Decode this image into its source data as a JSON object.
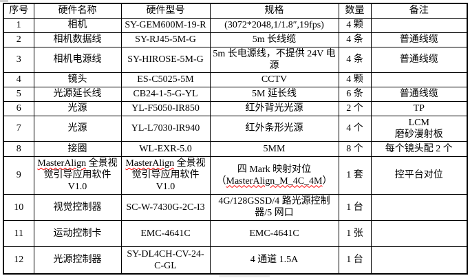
{
  "table": {
    "columns": [
      {
        "key": "no",
        "label": "序号"
      },
      {
        "key": "name",
        "label": "硬件名称"
      },
      {
        "key": "model",
        "label": "硬件型号"
      },
      {
        "key": "spec",
        "label": "规格"
      },
      {
        "key": "qty",
        "label": "数量"
      },
      {
        "key": "note",
        "label": "备注"
      }
    ],
    "rows": [
      {
        "no": "1",
        "name": "相机",
        "model": "SY-GEM600M-19-R",
        "spec": "(3072*2048,1/1.8″,19fps)",
        "qty": "4 颗",
        "note": ""
      },
      {
        "no": "2",
        "name": "相机数据线",
        "model": "SY-RJ45-5M-G",
        "spec": "5m 长线缆",
        "qty": "4 条",
        "note": "普通线缆"
      },
      {
        "no": "3",
        "name": "相机电源线",
        "model": "SY-HIROSE-5M-G",
        "spec": "5m 长电源线，不提供 24V 电源",
        "qty": "4 条",
        "note": "普通线缆"
      },
      {
        "no": "4",
        "name": "镜头",
        "model": "ES-C5025-5M",
        "spec": "CCTV",
        "qty": "4 颗",
        "note": ""
      },
      {
        "no": "5",
        "name": "光源延长线",
        "model": "CB24-1-5-G-YL",
        "spec": "5M 延长线",
        "qty": "6 条",
        "note": "普通线缆"
      },
      {
        "no": "6",
        "name": "光源",
        "model": "YL-F5050-IR850",
        "spec": "红外背光光源",
        "qty": "2 个",
        "note": "TP"
      },
      {
        "no": "7",
        "name": "光源",
        "model": "YL-L7030-IR940",
        "spec": "红外条形光源",
        "qty": "4 个",
        "note": "LCM\n磨砂漫射板"
      },
      {
        "no": "8",
        "name": "接圈",
        "model": "WL-EXR-5.0",
        "spec": "5MM",
        "qty": "8 个",
        "note": "每个镜头配 2 个"
      },
      {
        "no": "9",
        "name": "MasterAlign 全景视觉引导应用软件 V1.0",
        "model": "MasterAlign 全景视觉引导应用软件 V1.0",
        "spec": "四 Mark 映射对位\n（MasterAlign_M_4C_4M）",
        "qty": "1 套",
        "note": "控平台对位"
      },
      {
        "no": "10",
        "name": "视觉控制器",
        "model": "SC-W-7430G-2C-I3",
        "spec": "4G/128GSSD/4 路光源控制器/5 网口",
        "qty": "1 台",
        "note": ""
      },
      {
        "no": "11",
        "name": "运动控制卡",
        "model": "EMC-4641C",
        "spec": "EMC-4641C",
        "qty": "1 张",
        "note": ""
      },
      {
        "no": "12",
        "name": "光源控制器",
        "model": "SY-DL4CH-CV-24-C-GL",
        "spec": "4 通道 1.5A",
        "qty": "1 台",
        "note": ""
      }
    ]
  },
  "spellcheck": {
    "tokens": [
      "MasterAlign_M_4C_4M",
      "MasterAlign"
    ],
    "color": "#ff0000"
  },
  "colors": {
    "border": "#000000",
    "text": "#000000",
    "background": "#ffffff"
  }
}
